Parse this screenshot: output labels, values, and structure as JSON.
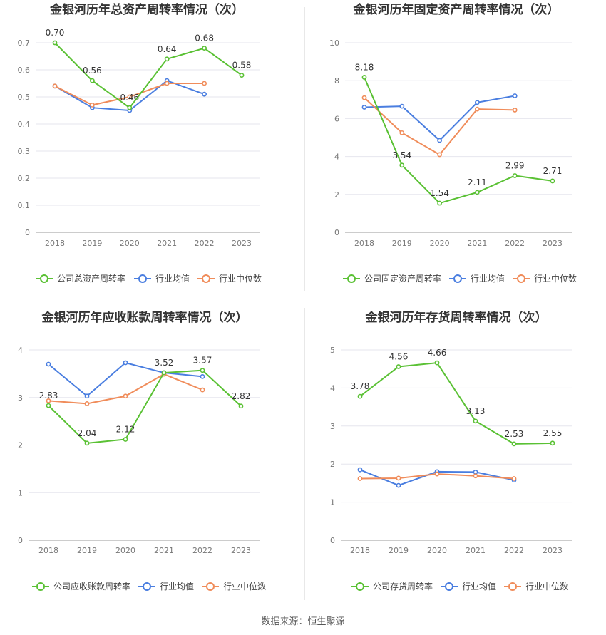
{
  "colors": {
    "company": "#5ac134",
    "avg": "#4a7ee0",
    "median": "#f08c5a"
  },
  "source": "数据来源：恒生聚源",
  "chart_data": [
    {
      "type": "line",
      "title": "金银河历年总资产周转率情况（次）",
      "categories": [
        "2018",
        "2019",
        "2020",
        "2021",
        "2022",
        "2023"
      ],
      "ylim": [
        0,
        0.7
      ],
      "yticks": [
        "0",
        "0.1",
        "0.2",
        "0.3",
        "0.4",
        "0.5",
        "0.6",
        "0.7"
      ],
      "series": [
        {
          "name": "公司总资产周转率",
          "values": [
            0.7,
            0.56,
            0.46,
            0.64,
            0.68,
            0.58
          ],
          "labels": [
            "0.70",
            "0.56",
            "0.46",
            "0.64",
            "0.68",
            "0.58"
          ]
        },
        {
          "name": "行业均值",
          "values": [
            0.54,
            0.46,
            0.45,
            0.56,
            0.51,
            null
          ]
        },
        {
          "name": "行业中位数",
          "values": [
            0.54,
            0.47,
            0.5,
            0.55,
            0.55,
            null
          ]
        }
      ]
    },
    {
      "type": "line",
      "title": "金银河历年固定资产周转率情况（次）",
      "categories": [
        "2018",
        "2019",
        "2020",
        "2021",
        "2022",
        "2023"
      ],
      "ylim": [
        0,
        10
      ],
      "yticks": [
        "0",
        "2",
        "4",
        "6",
        "8",
        "10"
      ],
      "series": [
        {
          "name": "公司固定资产周转率",
          "values": [
            8.18,
            3.54,
            1.54,
            2.11,
            2.99,
            2.71
          ],
          "labels": [
            "8.18",
            "3.54",
            "1.54",
            "2.11",
            "2.99",
            "2.71"
          ]
        },
        {
          "name": "行业均值",
          "values": [
            6.6,
            6.65,
            4.85,
            6.85,
            7.2,
            null
          ]
        },
        {
          "name": "行业中位数",
          "values": [
            7.1,
            5.25,
            4.1,
            6.5,
            6.45,
            null
          ]
        }
      ]
    },
    {
      "type": "line",
      "title": "金银河历年应收账款周转率情况（次）",
      "categories": [
        "2018",
        "2019",
        "2020",
        "2021",
        "2022",
        "2023"
      ],
      "ylim": [
        0,
        4
      ],
      "yticks": [
        "0",
        "1",
        "2",
        "3",
        "4"
      ],
      "series": [
        {
          "name": "公司应收账款周转率",
          "values": [
            2.83,
            2.04,
            2.12,
            3.52,
            3.57,
            2.82
          ],
          "labels": [
            "2.83",
            "2.04",
            "2.12",
            "3.52",
            "3.57",
            "2.82"
          ]
        },
        {
          "name": "行业均值",
          "values": [
            3.7,
            3.03,
            3.73,
            3.52,
            3.44,
            null
          ]
        },
        {
          "name": "行业中位数",
          "values": [
            2.93,
            2.87,
            3.03,
            3.49,
            3.16,
            null
          ]
        }
      ]
    },
    {
      "type": "line",
      "title": "金银河历年存货周转率情况（次）",
      "categories": [
        "2018",
        "2019",
        "2020",
        "2021",
        "2022",
        "2023"
      ],
      "ylim": [
        0,
        5
      ],
      "yticks": [
        "0",
        "1",
        "2",
        "3",
        "4",
        "5"
      ],
      "series": [
        {
          "name": "公司存货周转率",
          "values": [
            3.78,
            4.56,
            4.66,
            3.13,
            2.53,
            2.55
          ],
          "labels": [
            "3.78",
            "4.56",
            "4.66",
            "3.13",
            "2.53",
            "2.55"
          ]
        },
        {
          "name": "行业均值",
          "values": [
            1.85,
            1.44,
            1.8,
            1.79,
            1.58,
            null
          ]
        },
        {
          "name": "行业中位数",
          "values": [
            1.62,
            1.63,
            1.74,
            1.69,
            1.62,
            null
          ]
        }
      ]
    }
  ]
}
